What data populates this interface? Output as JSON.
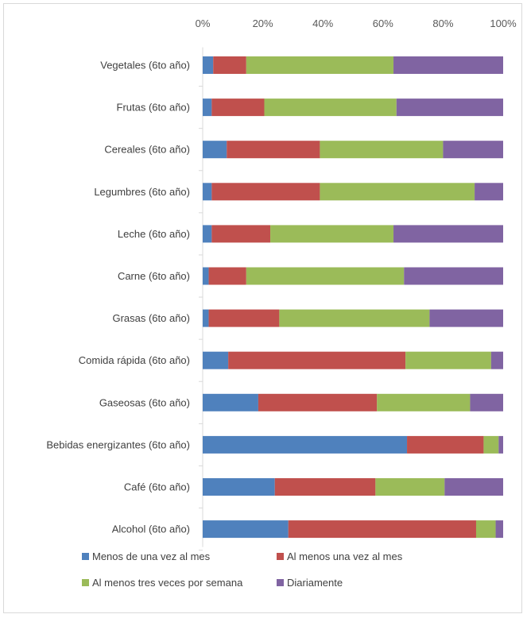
{
  "chart_data": {
    "type": "bar",
    "orientation": "horizontal",
    "stacked": true,
    "percent_stacked": true,
    "title": "",
    "xlabel": "",
    "ylabel": "",
    "xlim": [
      0,
      100
    ],
    "xticks": [
      "0%",
      "20%",
      "40%",
      "60%",
      "80%",
      "100%"
    ],
    "x_axis_position": "top",
    "grid": false,
    "legend_position": "bottom",
    "categories": [
      "Vegetales (6to año)",
      "Frutas (6to año)",
      "Cereales (6to año)",
      "Legumbres (6to año)",
      "Leche (6to año)",
      "Carne (6to año)",
      "Grasas (6to año)",
      "Comida rápida (6to año)",
      "Gaseosas (6to año)",
      "Bebidas energizantes (6to año)",
      "Café (6to año)",
      "Alcohol (6to año)"
    ],
    "series": [
      {
        "name": "Menos de una vez al mes",
        "color": "#4f81bd",
        "values": [
          3.5,
          3,
          8,
          3,
          3,
          2,
          2,
          8.5,
          18.5,
          68,
          24,
          28.5
        ]
      },
      {
        "name": "Al menos una vez al mes",
        "color": "#c0504d",
        "values": [
          11,
          17.5,
          31,
          36,
          19.5,
          12.5,
          23.5,
          59,
          39.5,
          25.5,
          33.5,
          62.5
        ]
      },
      {
        "name": "Al menos tres veces por semana",
        "color": "#9bbb59",
        "values": [
          49,
          44,
          41,
          51.5,
          41,
          52.5,
          50,
          28.5,
          31,
          5,
          23,
          6.5
        ]
      },
      {
        "name": "Diariamente",
        "color": "#8064a2",
        "values": [
          36.5,
          35.5,
          20,
          9.5,
          36.5,
          33,
          24.5,
          4,
          11,
          1.5,
          19.5,
          2.5
        ]
      }
    ]
  }
}
